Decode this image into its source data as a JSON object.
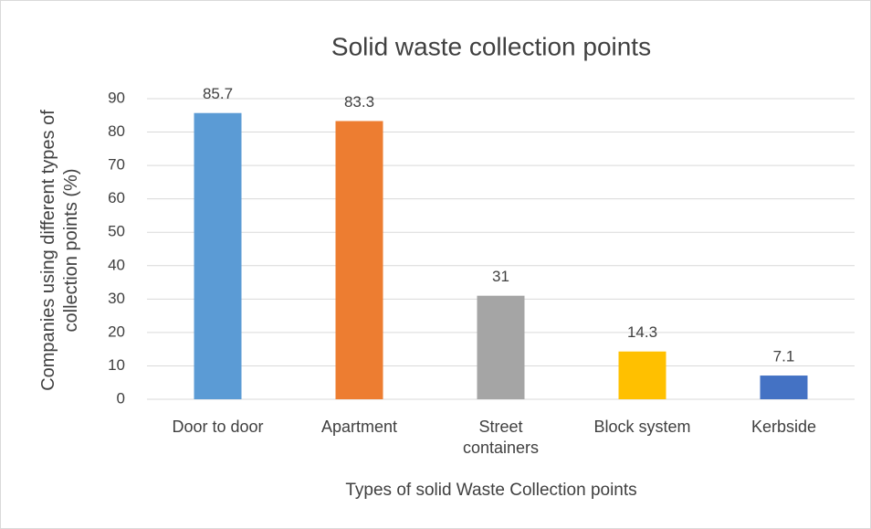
{
  "chart_data": {
    "type": "bar",
    "title": "Solid waste collection points",
    "x_label": "Types of solid Waste Collection points",
    "y_label": "Companies using different types of collection points (%)",
    "categories": [
      "Door to door",
      "Apartment",
      "Street containers",
      "Block system",
      "Kerbside"
    ],
    "values": [
      85.7,
      83.3,
      31,
      14.3,
      7.1
    ],
    "colors": [
      "#5b9bd5",
      "#ed7d31",
      "#a5a5a5",
      "#ffc000",
      "#4472c4"
    ],
    "ylim": [
      0,
      90
    ],
    "yticks": [
      0,
      10,
      20,
      30,
      40,
      50,
      60,
      70,
      80,
      90
    ],
    "grid": true
  }
}
